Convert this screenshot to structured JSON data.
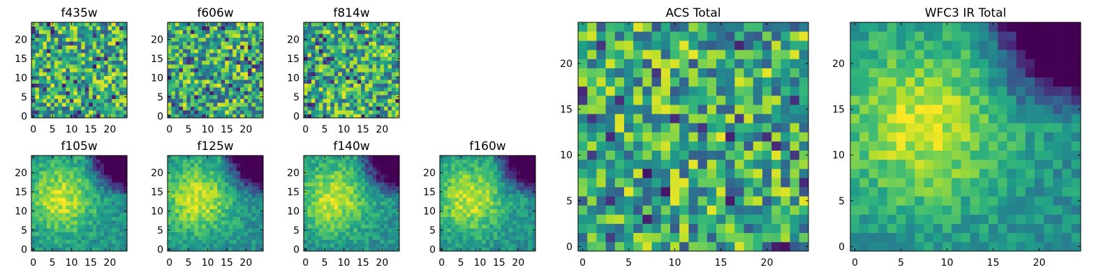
{
  "chart_data": [
    {
      "type": "heatmap",
      "title": "f435w",
      "xticks": [
        "0",
        "5",
        "10",
        "15",
        "20"
      ],
      "yticks": [
        "0",
        "5",
        "10",
        "15",
        "20"
      ],
      "grid_size": 25,
      "colormap": "viridis",
      "pattern": "noise",
      "seed": 11
    },
    {
      "type": "heatmap",
      "title": "f606w",
      "xticks": [
        "0",
        "5",
        "10",
        "15",
        "20"
      ],
      "yticks": [
        "0",
        "5",
        "10",
        "15",
        "20"
      ],
      "grid_size": 25,
      "colormap": "viridis",
      "pattern": "noise",
      "seed": 23
    },
    {
      "type": "heatmap",
      "title": "f814w",
      "xticks": [
        "0",
        "5",
        "10",
        "15",
        "20"
      ],
      "yticks": [
        "0",
        "5",
        "10",
        "15",
        "20"
      ],
      "grid_size": 25,
      "colormap": "viridis",
      "pattern": "noise",
      "seed": 37
    },
    {
      "type": "heatmap",
      "title": "f105w",
      "xticks": [
        "0",
        "5",
        "10",
        "15",
        "20"
      ],
      "yticks": [
        "0",
        "5",
        "10",
        "15",
        "20"
      ],
      "grid_size": 25,
      "colormap": "viridis",
      "pattern": "smooth",
      "seed": 41
    },
    {
      "type": "heatmap",
      "title": "f125w",
      "xticks": [
        "0",
        "5",
        "10",
        "15",
        "20"
      ],
      "yticks": [
        "0",
        "5",
        "10",
        "15",
        "20"
      ],
      "grid_size": 25,
      "colormap": "viridis",
      "pattern": "smooth",
      "seed": 53
    },
    {
      "type": "heatmap",
      "title": "f140w",
      "xticks": [
        "0",
        "5",
        "10",
        "15",
        "20"
      ],
      "yticks": [
        "0",
        "5",
        "10",
        "15",
        "20"
      ],
      "grid_size": 25,
      "colormap": "viridis",
      "pattern": "smooth",
      "seed": 67
    },
    {
      "type": "heatmap",
      "title": "f160w",
      "xticks": [
        "0",
        "5",
        "10",
        "15",
        "20"
      ],
      "yticks": [
        "0",
        "5",
        "10",
        "15",
        "20"
      ],
      "grid_size": 25,
      "colormap": "viridis",
      "pattern": "smooth",
      "seed": 79
    },
    {
      "type": "heatmap",
      "title": "ACS Total",
      "xticks": [
        "0",
        "5",
        "10",
        "15",
        "20"
      ],
      "yticks": [
        "0",
        "5",
        "10",
        "15",
        "20"
      ],
      "grid_size": 25,
      "colormap": "viridis",
      "pattern": "noise",
      "seed": 83
    },
    {
      "type": "heatmap",
      "title": "WFC3 IR Total",
      "xticks": [
        "0",
        "5",
        "10",
        "15",
        "20"
      ],
      "yticks": [
        "0",
        "5",
        "10",
        "15",
        "20"
      ],
      "grid_size": 25,
      "colormap": "viridis",
      "pattern": "smooth",
      "seed": 97
    }
  ]
}
